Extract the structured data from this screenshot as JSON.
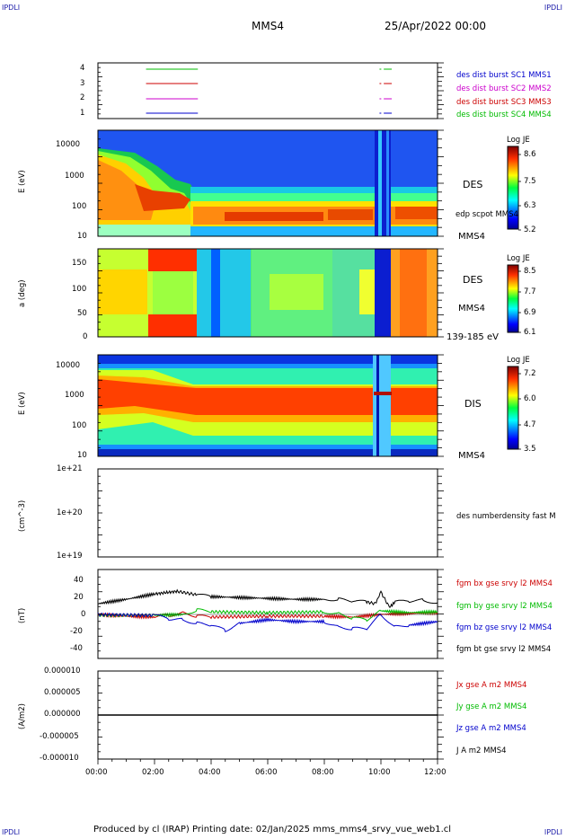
{
  "corners": {
    "tl": "IPDLI",
    "tr": "IPDLI",
    "bl": "IPDLI",
    "br": "IPDLI"
  },
  "header": {
    "spacecraft": "MMS4",
    "date": "25/Apr/2022 00:00"
  },
  "footer": {
    "text": "Produced by cl (IRAP)   Printing date: 02/Jan/2025   mms_mms4_srvy_vue_web1.cl"
  },
  "colors": {
    "c1": "#0000cc",
    "c2": "#cc00cc",
    "c3": "#cc0000",
    "c4": "#00bb00",
    "bt": "#000000"
  },
  "time_axis": {
    "ticks": [
      "00:00",
      "02:00",
      "04:00",
      "06:00",
      "08:00",
      "10:00",
      "12:00"
    ]
  },
  "panels": {
    "p1": {
      "yticks": [
        "4",
        "3",
        "2",
        "1"
      ],
      "labels": [
        "des dist burst SC1 MMS1",
        "des dist burst SC2 MMS2",
        "des dist burst SC3 MMS3",
        "des dist burst SC4 MMS4"
      ]
    },
    "p2": {
      "ylabel": "E (eV)",
      "yticks": [
        "10000",
        "1000",
        "100",
        "10"
      ],
      "instrument": "DES",
      "sub1": "edp scpot MMS4",
      "sub2": "MMS4",
      "cb_title": "Log JE",
      "cb_ticks": [
        "8.6",
        "7.5",
        "6.3",
        "5.2"
      ]
    },
    "p3": {
      "ylabel": "a (deg)",
      "yticks": [
        "150",
        "100",
        "50",
        "0"
      ],
      "instrument": "DES",
      "sub1": "MMS4",
      "sub2": "139-185 eV",
      "cb_title": "Log JE",
      "cb_ticks": [
        "8.5",
        "7.7",
        "6.9",
        "6.1"
      ]
    },
    "p4": {
      "ylabel": "E (eV)",
      "yticks": [
        "10000",
        "1000",
        "100",
        "10"
      ],
      "instrument": "DIS",
      "sub1": "MMS4",
      "cb_title": "Log JE",
      "cb_ticks": [
        "7.2",
        "6.0",
        "4.7",
        "3.5"
      ]
    },
    "p5": {
      "ylabel": "(cm^-3)",
      "yticks": [
        "1e+21",
        "1e+20",
        "1e+19"
      ],
      "label": "des numberdensity fast M"
    },
    "p6": {
      "ylabel": "(nT)",
      "yticks": [
        "40",
        "20",
        "0",
        "-20",
        "-40"
      ],
      "labels": [
        "fgm bx gse srvy l2 MMS4",
        "fgm by gse srvy l2 MMS4",
        "fgm bz gse srvy l2 MMS4",
        "fgm bt gse srvy l2 MMS4"
      ]
    },
    "p7": {
      "ylabel": "(A/m2)",
      "yticks": [
        "0.000010",
        "0.000005",
        "0.000000",
        "-0.000005",
        "-0.000010"
      ],
      "labels": [
        "Jx gse A m2 MMS4",
        "Jy gse A m2 MMS4",
        "Jz gse A m2 MMS4",
        "J A m2 MMS4"
      ]
    }
  },
  "chart_data": {
    "type": "line",
    "x_range_hours": [
      0,
      12
    ],
    "series": [
      {
        "name": "fgm bt gse srvy l2 MMS4",
        "x": [
          0,
          1,
          2,
          2.8,
          3.5,
          4,
          5,
          6,
          7,
          8,
          8.5,
          9,
          9.5,
          9.8,
          10,
          10.3,
          10.5,
          11,
          11.5,
          12
        ],
        "values": [
          12,
          17,
          23,
          26,
          22,
          20,
          19,
          18,
          17,
          17,
          17,
          15,
          14,
          12,
          25,
          8,
          14,
          15,
          16,
          13
        ]
      },
      {
        "name": "fgm bx gse srvy l2 MMS4",
        "x": [
          0,
          1,
          2,
          2.5,
          3,
          3.5,
          4,
          6,
          8,
          9,
          10,
          11,
          12
        ],
        "values": [
          0,
          -2,
          -3,
          -1,
          2,
          -2,
          -3,
          -2,
          -2,
          -3,
          0,
          1,
          2
        ]
      },
      {
        "name": "fgm by gse srvy l2 MMS4",
        "x": [
          0,
          2,
          3,
          3.5,
          4,
          6,
          8,
          8.5,
          9,
          9.5,
          10,
          11,
          12
        ],
        "values": [
          -1,
          -1,
          0,
          5,
          3,
          2,
          3,
          1,
          -4,
          -6,
          4,
          2,
          3
        ]
      },
      {
        "name": "fgm bz gse srvy l2 MMS4",
        "x": [
          0,
          2,
          2.5,
          3,
          3.5,
          4,
          4.5,
          5,
          6,
          7,
          8,
          8.5,
          9,
          9.5,
          10,
          10.5,
          11,
          12
        ],
        "values": [
          0,
          -1,
          -5,
          -6,
          -10,
          -12,
          -18,
          -10,
          -6,
          -8,
          -8,
          -14,
          -16,
          -16,
          0,
          -14,
          -12,
          -8
        ]
      },
      {
        "name": "J A m2 MMS4",
        "x": [
          0,
          6,
          9.8,
          10,
          10.2,
          12
        ],
        "values": [
          0,
          0,
          0,
          0,
          0,
          0
        ]
      }
    ],
    "burst_lines": [
      {
        "level": 4,
        "intervals": [
          [
            1.7,
            3.5
          ],
          [
            9.95,
            9.98
          ],
          [
            10.1,
            10.35
          ]
        ]
      },
      {
        "level": 3,
        "intervals": [
          [
            1.7,
            3.5
          ],
          [
            9.95,
            9.98
          ],
          [
            10.1,
            10.35
          ]
        ]
      },
      {
        "level": 2,
        "intervals": [
          [
            1.7,
            3.5
          ],
          [
            9.95,
            9.98
          ],
          [
            10.1,
            10.35
          ]
        ]
      },
      {
        "level": 1,
        "intervals": [
          [
            1.7,
            3.5
          ],
          [
            9.95,
            9.98
          ],
          [
            10.1,
            10.35
          ]
        ]
      }
    ]
  }
}
